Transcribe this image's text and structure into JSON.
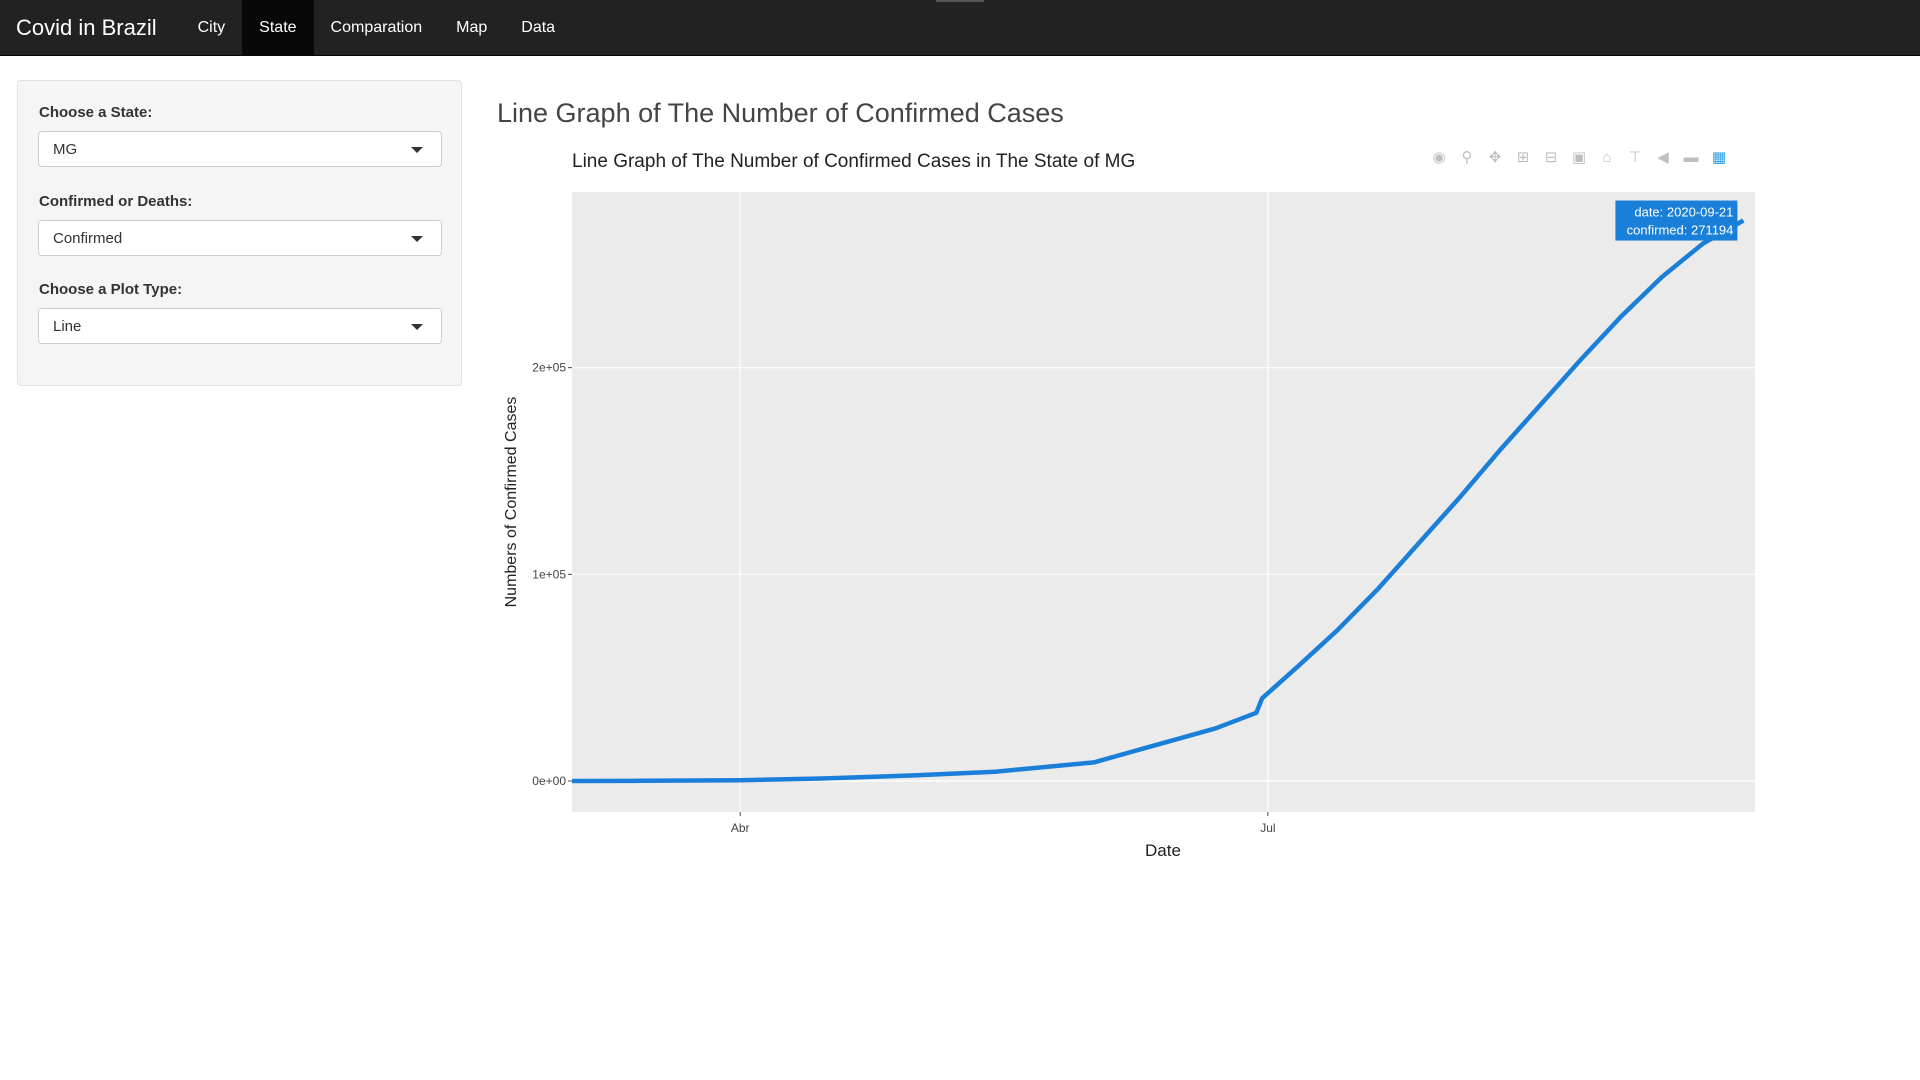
{
  "navbar": {
    "brand": "Covid in Brazil",
    "items": [
      {
        "label": "City",
        "active": false
      },
      {
        "label": "State",
        "active": true
      },
      {
        "label": "Comparation",
        "active": false
      },
      {
        "label": "Map",
        "active": false
      },
      {
        "label": "Data",
        "active": false
      }
    ]
  },
  "sidebar": {
    "state_label": "Choose a State:",
    "state_value": "MG",
    "metric_label": "Confirmed or Deaths:",
    "metric_value": "Confirmed",
    "plot_label": "Choose a Plot Type:",
    "plot_value": "Line"
  },
  "main": {
    "heading": "Line Graph of The Number of Confirmed Cases"
  },
  "toolbar_icons": [
    "camera-icon",
    "zoom-icon",
    "pan-icon",
    "zoom-in-icon",
    "zoom-out-icon",
    "autoscale-icon",
    "reset-axes-icon",
    "spike-lines-icon",
    "compare-hover-icon",
    "closest-hover-icon",
    "plotly-logo-icon"
  ],
  "chart_data": {
    "type": "line",
    "title": "Line Graph of The Number of Confirmed Cases in The State of MG",
    "xlabel": "Date",
    "ylabel": "Numbers of Confirmed Cases",
    "x_tick_labels": [
      "Abr",
      "Jul"
    ],
    "y_tick_labels": [
      "0e+00",
      "1e+05",
      "2e+05"
    ],
    "y_ticks": [
      0,
      100000,
      200000
    ],
    "xlim": [
      "2020-03-03",
      "2020-09-23"
    ],
    "ylim": [
      -15000,
      285000
    ],
    "grid": true,
    "line_color": "#1a7fd8",
    "panel_color": "#ebebeb",
    "series": [
      {
        "x": [
          "2020-03-03",
          "2020-03-15",
          "2020-04-01",
          "2020-04-15",
          "2020-05-01",
          "2020-05-15",
          "2020-06-01",
          "2020-06-08",
          "2020-06-15",
          "2020-06-22",
          "2020-06-29",
          "2020-06-30",
          "2020-07-06",
          "2020-07-13",
          "2020-07-20",
          "2020-07-27",
          "2020-08-03",
          "2020-08-10",
          "2020-08-17",
          "2020-08-24",
          "2020-08-31",
          "2020-09-07",
          "2020-09-14",
          "2020-09-21"
        ],
        "y": [
          0,
          100,
          400,
          1200,
          2700,
          4500,
          9000,
          14500,
          20000,
          25500,
          33000,
          40000,
          55000,
          73000,
          93000,
          115000,
          137000,
          160000,
          182000,
          204000,
          225000,
          244000,
          260000,
          271194
        ]
      }
    ],
    "hover": {
      "date_label": "date: 2020-09-21",
      "value_label": "confirmed: 271194"
    }
  }
}
